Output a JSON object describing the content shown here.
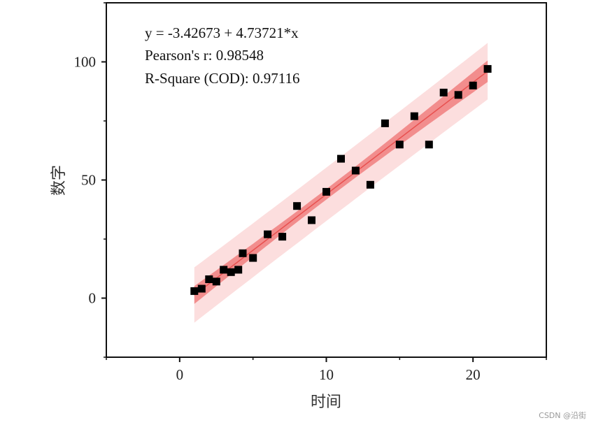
{
  "chart_data": {
    "type": "scatter",
    "xlabel": "时间",
    "ylabel": "数字",
    "xlim": [
      -5,
      25
    ],
    "ylim": [
      -25,
      125
    ],
    "xticks": [
      0,
      10,
      20
    ],
    "yticks": [
      0,
      50,
      100
    ],
    "minor_xticks": [
      -5,
      5,
      15,
      25
    ],
    "minor_yticks": [
      -25,
      25,
      75,
      125
    ],
    "grid": false,
    "points": {
      "x": [
        1,
        1.5,
        2,
        2.5,
        3,
        3.5,
        4,
        4.3,
        5,
        6,
        7,
        8,
        9,
        10,
        11,
        12,
        13,
        14,
        15,
        16,
        17,
        18,
        19,
        20,
        21
      ],
      "y": [
        3,
        4,
        8,
        7,
        12,
        11,
        12,
        19,
        17,
        27,
        26,
        39,
        33,
        45,
        59,
        54,
        48,
        74,
        65,
        77,
        65,
        87,
        86,
        90,
        97
      ],
      "color": "#000000",
      "marker": "square"
    },
    "fit": {
      "intercept": -3.42673,
      "slope": 4.73721,
      "x_range": [
        1,
        21
      ],
      "color": "#e8504f",
      "confidence_band_color": "#f07f7f",
      "prediction_band_color": "#fcd8d8"
    },
    "annotations": [
      "y = -3.42673 + 4.73721*x",
      "Pearson's r: 0.98548",
      "R-Square (COD): 0.97116"
    ]
  },
  "watermark": "CSDN @沿街"
}
